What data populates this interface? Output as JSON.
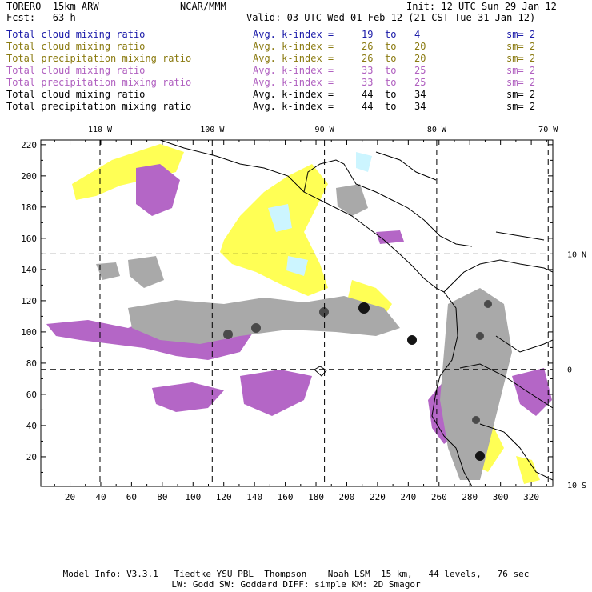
{
  "header": {
    "model": "TORERO  15km ARW",
    "org": "NCAR/MMM",
    "init": "Init: 12 UTC Sun 29 Jan 12",
    "fcst": "Fcst:   63 h",
    "valid": "Valid: 03 UTC Wed 01 Feb 12 (21 CST Tue 31 Jan 12)"
  },
  "legend": [
    {
      "field": "Total cloud mixing ratio",
      "avg": "Avg. k-index =",
      "from": "19",
      "to": "to",
      "end": "4",
      "sm": "sm= 2",
      "color": "#1a1aa8"
    },
    {
      "field": "Total cloud mixing ratio",
      "avg": "Avg. k-index =",
      "from": "26",
      "to": "to",
      "end": "20",
      "sm": "sm= 2",
      "color": "#8a7a10"
    },
    {
      "field": "Total precipitation mixing ratio",
      "avg": "Avg. k-index =",
      "from": "26",
      "to": "to",
      "end": "20",
      "sm": "sm= 2",
      "color": "#8a7a10"
    },
    {
      "field": "Total cloud mixing ratio",
      "avg": "Avg. k-index =",
      "from": "33",
      "to": "to",
      "end": "25",
      "sm": "sm= 2",
      "color": "#b060c0"
    },
    {
      "field": "Total precipitation mixing ratio",
      "avg": "Avg. k-index =",
      "from": "33",
      "to": "to",
      "end": "25",
      "sm": "sm= 2",
      "color": "#b060c0"
    },
    {
      "field": "Total cloud mixing ratio",
      "avg": "Avg. k-index =",
      "from": "44",
      "to": "to",
      "end": "34",
      "sm": "sm= 2",
      "color": "#000000"
    },
    {
      "field": "Total precipitation mixing ratio",
      "avg": "Avg. k-index =",
      "from": "44",
      "to": "to",
      "end": "34",
      "sm": "sm= 2",
      "color": "#000000"
    }
  ],
  "axes": {
    "lon_labels": [
      {
        "text": "110 W",
        "grid_x": 39.5
      },
      {
        "text": "100 W",
        "grid_x": 112.5
      },
      {
        "text": "90 W",
        "grid_x": 185.5
      },
      {
        "text": "80 W",
        "grid_x": 258.5
      },
      {
        "text": "70 W",
        "grid_x": 331
      }
    ],
    "lat_labels": [
      {
        "text": "10 N",
        "grid_y": 150
      },
      {
        "text": "0",
        "grid_y": 76
      },
      {
        "text": "10 S",
        "grid_y": 2
      }
    ],
    "x_ticks": [
      20,
      40,
      60,
      80,
      100,
      120,
      140,
      160,
      180,
      200,
      220,
      240,
      260,
      280,
      300,
      320
    ],
    "y_ticks": [
      20,
      40,
      60,
      80,
      100,
      120,
      140,
      160,
      180,
      200,
      220
    ],
    "x_range": [
      1,
      334
    ],
    "y_range": [
      1,
      223
    ]
  },
  "colors": {
    "yellow": "#ffff55",
    "lightblue": "#ccf5ff",
    "purple": "#b466c6",
    "gray": "#a9a9a9",
    "darkgray": "#4a4a4a",
    "black": "#151515"
  },
  "footer": {
    "line1": "Model Info: V3.3.1   Tiedtke YSU PBL  Thompson    Noah LSM  15 km,   44 levels,   76 sec",
    "line2": "LW: Godd SW: Goddard DIFF: simple KM: 2D Smagor"
  }
}
